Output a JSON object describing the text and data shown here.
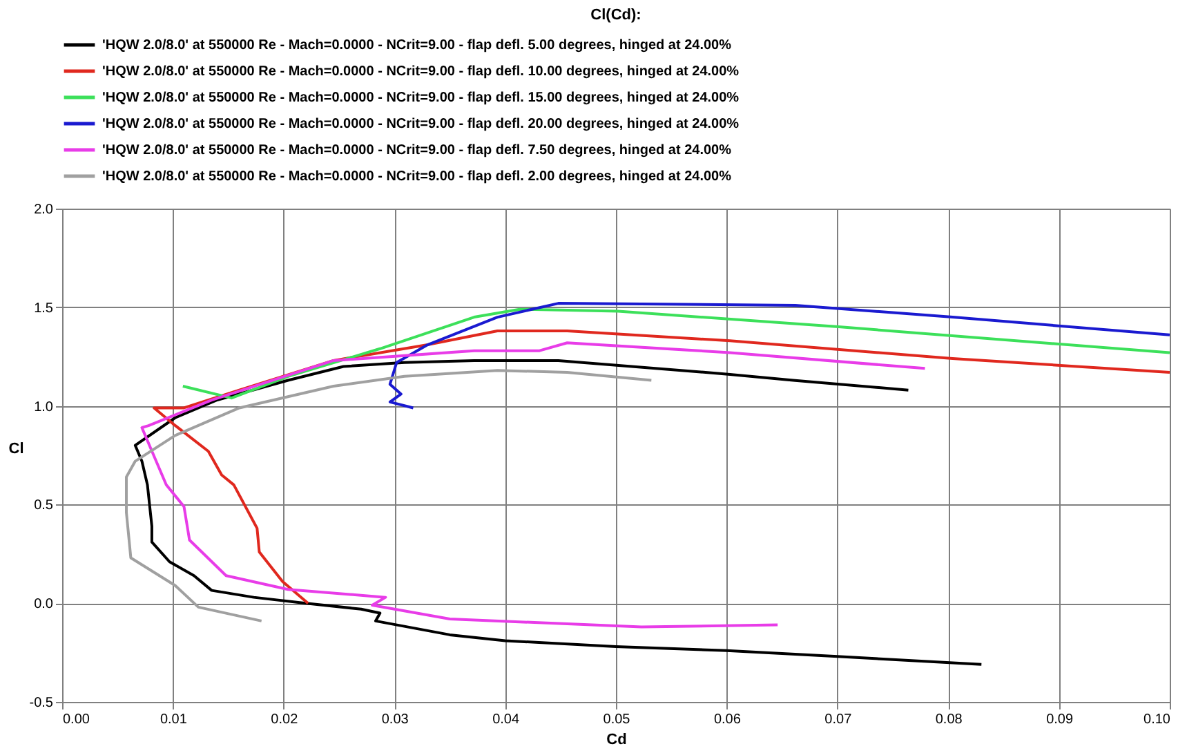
{
  "chart_data": {
    "type": "line",
    "title": "Cl(Cd):",
    "xlabel": "Cd",
    "ylabel": "Cl",
    "legend": "top left",
    "grid": true,
    "marker": "none",
    "line_style": "solid",
    "xlim": [
      0,
      0.1
    ],
    "ylim": [
      -0.5,
      2.0
    ],
    "xticks": [
      {
        "value": 0,
        "label": "0.00"
      },
      {
        "value": 0.01,
        "label": "0.01"
      },
      {
        "value": 0.02,
        "label": "0.02"
      },
      {
        "value": 0.03,
        "label": "0.03"
      },
      {
        "value": 0.04,
        "label": "0.04"
      },
      {
        "value": 0.05,
        "label": "0.05"
      },
      {
        "value": 0.06,
        "label": "0.06"
      },
      {
        "value": 0.07,
        "label": "0.07"
      },
      {
        "value": 0.08,
        "label": "0.08"
      },
      {
        "value": 0.09,
        "label": "0.09"
      },
      {
        "value": 0.1,
        "label": "0.10"
      }
    ],
    "yticks": [
      {
        "value": -0.5,
        "label": "-0.5"
      },
      {
        "value": 0,
        "label": "0.0"
      },
      {
        "value": 0.5,
        "label": "0.5"
      },
      {
        "value": 1,
        "label": "1.0"
      },
      {
        "value": 1.5,
        "label": "1.5"
      },
      {
        "value": 2,
        "label": "2.0"
      }
    ],
    "series": [
      {
        "name": "'HQW 2.0/8.0' at 550000 Re - Mach=0.0000 - NCrit=9.00 - flap defl. 5.00 degrees, hinged at 24.00%",
        "color": "#000000",
        "x": [
          0.083,
          0.07,
          0.06,
          0.05,
          0.04,
          0.035,
          0.0283,
          0.0287,
          0.027,
          0.022,
          0.0173,
          0.0135,
          0.0119,
          0.0097,
          0.0081,
          0.0081,
          0.0077,
          0.0072,
          0.0066,
          0.0102,
          0.014,
          0.0204,
          0.0254,
          0.0309,
          0.0372,
          0.0435,
          0.0448,
          0.0603,
          0.066,
          0.0764
        ],
        "values": [
          -0.31,
          -0.27,
          -0.24,
          -0.22,
          -0.19,
          -0.16,
          -0.09,
          -0.05,
          -0.03,
          0.0,
          0.03,
          0.065,
          0.14,
          0.21,
          0.31,
          0.39,
          0.6,
          0.72,
          0.8,
          0.94,
          1.03,
          1.13,
          1.2,
          1.22,
          1.23,
          1.23,
          1.23,
          1.16,
          1.13,
          1.08
        ]
      },
      {
        "name": "'HQW 2.0/8.0' at 550000 Re - Mach=0.0000 - NCrit=9.00 - flap defl. 10.00 degrees, hinged at 24.00%",
        "color": "#e0281e",
        "x": [
          0.0222,
          0.0199,
          0.0178,
          0.0176,
          0.0155,
          0.0144,
          0.0132,
          0.01,
          0.0083,
          0.011,
          0.016,
          0.0245,
          0.033,
          0.0393,
          0.0456,
          0.0603,
          0.0804,
          0.1
        ],
        "values": [
          0.0,
          0.11,
          0.26,
          0.38,
          0.6,
          0.65,
          0.77,
          0.91,
          0.99,
          0.99,
          1.08,
          1.23,
          1.31,
          1.38,
          1.38,
          1.33,
          1.24,
          1.17
        ]
      },
      {
        "name": "'HQW 2.0/8.0' at 550000 Re - Mach=0.0000 - NCrit=9.00 - flap defl. 15.00 degrees, hinged at 24.00%",
        "color": "#3ce05a",
        "x": [
          0.0109,
          0.0153,
          0.0204,
          0.0287,
          0.0372,
          0.0413,
          0.0502,
          0.0703,
          0.1
        ],
        "values": [
          1.1,
          1.04,
          1.15,
          1.29,
          1.45,
          1.49,
          1.48,
          1.4,
          1.27
        ]
      },
      {
        "name": "'HQW 2.0/8.0' at 550000 Re - Mach=0.0000 - NCrit=9.00 - flap defl. 20.00 degrees, hinged at 24.00%",
        "color": "#1a1ad0",
        "x": [
          0.0317,
          0.0296,
          0.0306,
          0.0296,
          0.0302,
          0.033,
          0.0393,
          0.0448,
          0.0662,
          0.0804,
          0.1
        ],
        "values": [
          0.99,
          1.02,
          1.06,
          1.11,
          1.22,
          1.31,
          1.45,
          1.52,
          1.51,
          1.45,
          1.36
        ]
      },
      {
        "name": "'HQW 2.0/8.0' at 550000 Re - Mach=0.0000 - NCrit=9.00 - flap defl. 7.50 degrees, hinged at 24.00%",
        "color": "#e83ce8",
        "x": [
          0.0646,
          0.0523,
          0.035,
          0.028,
          0.0292,
          0.0204,
          0.0148,
          0.0115,
          0.011,
          0.0094,
          0.0072,
          0.0078,
          0.0135,
          0.0245,
          0.0372,
          0.0431,
          0.0456,
          0.0603,
          0.0779
        ],
        "values": [
          -0.11,
          -0.12,
          -0.08,
          -0.01,
          0.03,
          0.07,
          0.14,
          0.32,
          0.49,
          0.6,
          0.89,
          0.9,
          1.03,
          1.23,
          1.28,
          1.28,
          1.32,
          1.27,
          1.19
        ]
      },
      {
        "name": "'HQW 2.0/8.0' at 550000 Re - Mach=0.0000 - NCrit=9.00 - flap defl. 2.00 degrees, hinged at 24.00%",
        "color": "#a0a0a0",
        "x": [
          0.018,
          0.0123,
          0.0102,
          0.0062,
          0.0058,
          0.0058,
          0.0066,
          0.0102,
          0.016,
          0.0245,
          0.0309,
          0.0393,
          0.0456,
          0.0532
        ],
        "values": [
          -0.09,
          -0.02,
          0.09,
          0.23,
          0.46,
          0.64,
          0.72,
          0.85,
          0.99,
          1.1,
          1.15,
          1.18,
          1.17,
          1.13
        ]
      }
    ]
  }
}
